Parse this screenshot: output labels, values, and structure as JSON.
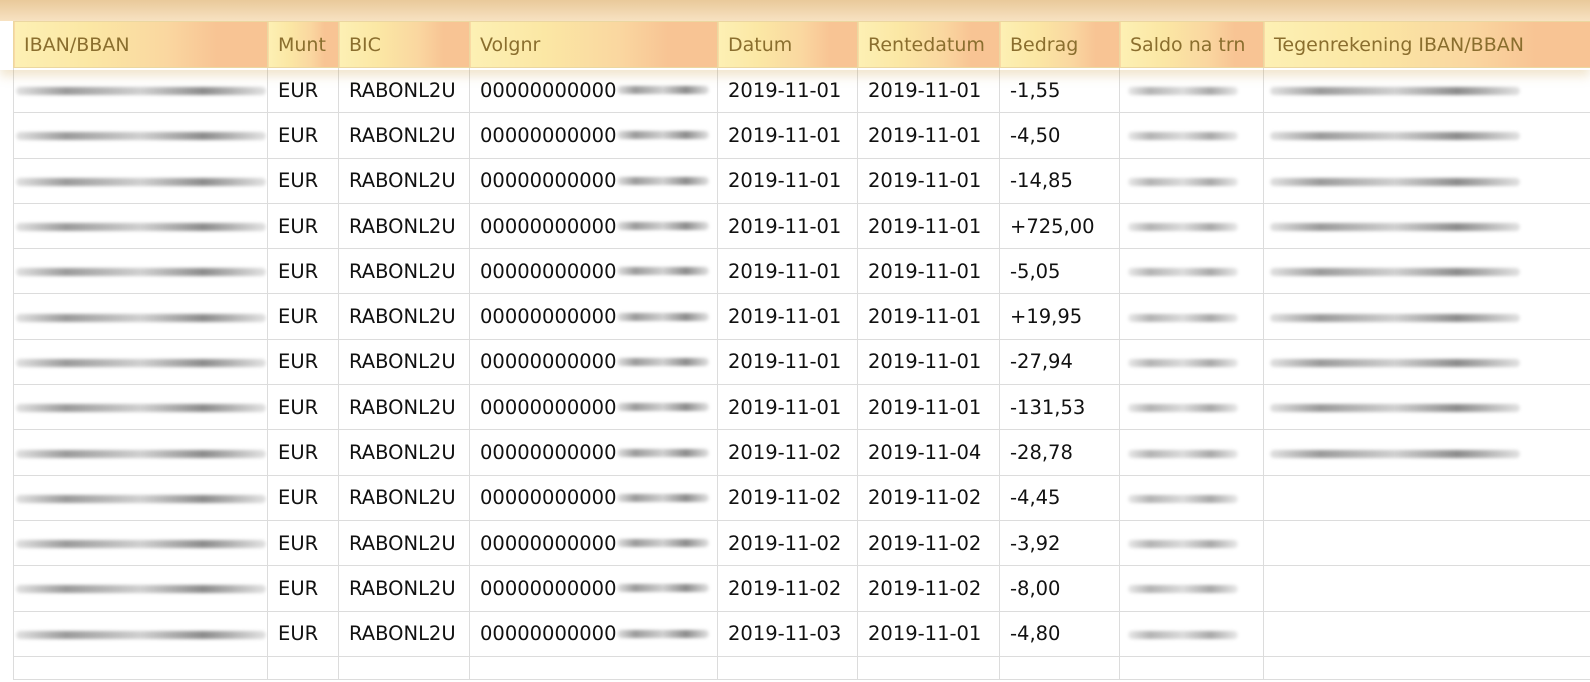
{
  "table": {
    "headers": [
      "IBAN/BBAN",
      "Munt",
      "BIC",
      "Volgnr",
      "Datum",
      "Rentedatum",
      "Bedrag",
      "Saldo na trn",
      "Tegenrekening IBAN/BBAN"
    ],
    "rows": [
      {
        "munt": "EUR",
        "bic": "RABONL2U",
        "volgnr": "00000000000",
        "datum": "2019-11-01",
        "rentedatum": "2019-11-01",
        "bedrag": "-1,55"
      },
      {
        "munt": "EUR",
        "bic": "RABONL2U",
        "volgnr": "00000000000",
        "datum": "2019-11-01",
        "rentedatum": "2019-11-01",
        "bedrag": "-4,50"
      },
      {
        "munt": "EUR",
        "bic": "RABONL2U",
        "volgnr": "00000000000",
        "datum": "2019-11-01",
        "rentedatum": "2019-11-01",
        "bedrag": "-14,85"
      },
      {
        "munt": "EUR",
        "bic": "RABONL2U",
        "volgnr": "00000000000",
        "datum": "2019-11-01",
        "rentedatum": "2019-11-01",
        "bedrag": "+725,00"
      },
      {
        "munt": "EUR",
        "bic": "RABONL2U",
        "volgnr": "00000000000",
        "datum": "2019-11-01",
        "rentedatum": "2019-11-01",
        "bedrag": "-5,05"
      },
      {
        "munt": "EUR",
        "bic": "RABONL2U",
        "volgnr": "00000000000",
        "datum": "2019-11-01",
        "rentedatum": "2019-11-01",
        "bedrag": "+19,95"
      },
      {
        "munt": "EUR",
        "bic": "RABONL2U",
        "volgnr": "00000000000",
        "datum": "2019-11-01",
        "rentedatum": "2019-11-01",
        "bedrag": "-27,94"
      },
      {
        "munt": "EUR",
        "bic": "RABONL2U",
        "volgnr": "00000000000",
        "datum": "2019-11-01",
        "rentedatum": "2019-11-01",
        "bedrag": "-131,53"
      },
      {
        "munt": "EUR",
        "bic": "RABONL2U",
        "volgnr": "00000000000",
        "datum": "2019-11-02",
        "rentedatum": "2019-11-04",
        "bedrag": "-28,78"
      },
      {
        "munt": "EUR",
        "bic": "RABONL2U",
        "volgnr": "00000000000",
        "datum": "2019-11-02",
        "rentedatum": "2019-11-02",
        "bedrag": "-4,45"
      },
      {
        "munt": "EUR",
        "bic": "RABONL2U",
        "volgnr": "00000000000",
        "datum": "2019-11-02",
        "rentedatum": "2019-11-02",
        "bedrag": "-3,92"
      },
      {
        "munt": "EUR",
        "bic": "RABONL2U",
        "volgnr": "00000000000",
        "datum": "2019-11-02",
        "rentedatum": "2019-11-02",
        "bedrag": "-8,00"
      },
      {
        "munt": "EUR",
        "bic": "RABONL2U",
        "volgnr": "00000000000",
        "datum": "2019-11-03",
        "rentedatum": "2019-11-01",
        "bedrag": "-4,80"
      }
    ],
    "tegen_visible_rows": 9
  },
  "colors": {
    "header_text": "#8a6e2e",
    "header_start": "#fdf0b4",
    "header_end": "#f8c494",
    "grid": "#dcdcdc"
  }
}
